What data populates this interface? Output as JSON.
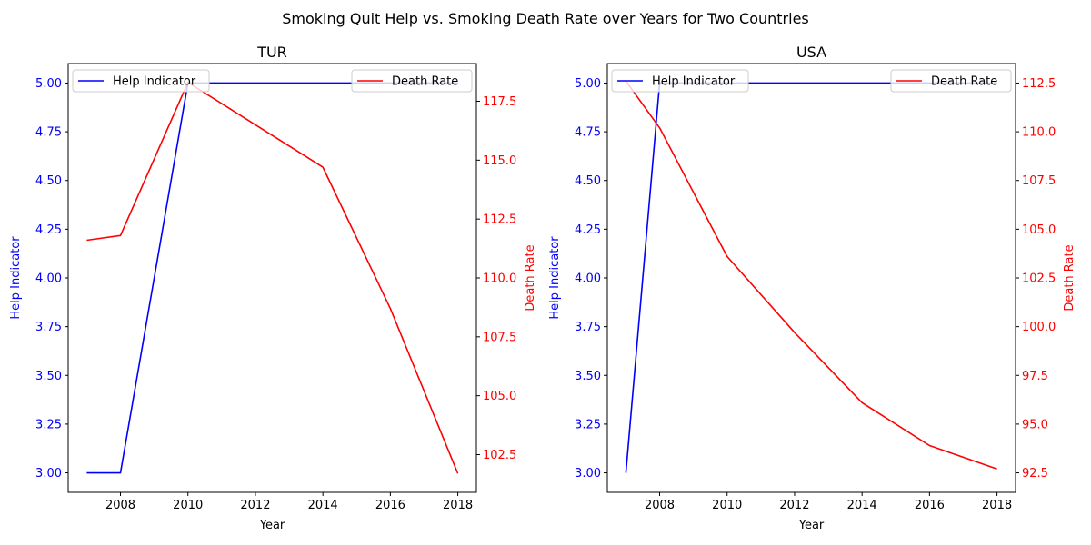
{
  "figure": {
    "title": "Smoking Quit Help vs. Smoking Death Rate over Years for Two Countries"
  },
  "colors": {
    "help": "#0000ff",
    "death": "#ff0000",
    "axes": "#000000",
    "background": "#ffffff"
  },
  "chart_data": [
    {
      "type": "line",
      "title": "TUR",
      "xlabel": "Year",
      "ylabel_left": "Help Indicator",
      "ylabel_right": "Death Rate",
      "x": [
        2007,
        2008,
        2010,
        2012,
        2014,
        2016,
        2018
      ],
      "xlim": [
        2006.45,
        2018.55
      ],
      "xticks": [
        2008,
        2010,
        2012,
        2014,
        2016,
        2018
      ],
      "ylim_left": [
        2.9,
        5.1
      ],
      "yticks_left": [
        3.0,
        3.25,
        3.5,
        3.75,
        4.0,
        4.25,
        4.5,
        4.75,
        5.0
      ],
      "ylim_right": [
        100.9,
        119.1
      ],
      "yticks_right": [
        102.5,
        105.0,
        107.5,
        110.0,
        112.5,
        115.0,
        117.5
      ],
      "grid": false,
      "series": [
        {
          "name": "Help Indicator",
          "axis": "left",
          "color": "#0000ff",
          "values": [
            3,
            3,
            5,
            5,
            5,
            5,
            5
          ]
        },
        {
          "name": "Death Rate",
          "axis": "right",
          "color": "#ff0000",
          "values": [
            111.6,
            111.8,
            118.3,
            116.5,
            114.7,
            108.7,
            101.7
          ]
        }
      ],
      "legends": [
        {
          "placement": "upper left",
          "entries": [
            "Help Indicator"
          ]
        },
        {
          "placement": "upper right",
          "entries": [
            "Death Rate"
          ]
        }
      ]
    },
    {
      "type": "line",
      "title": "USA",
      "xlabel": "Year",
      "ylabel_left": "Help Indicator",
      "ylabel_right": "Death Rate",
      "x": [
        2007,
        2008,
        2010,
        2012,
        2014,
        2016,
        2018
      ],
      "xlim": [
        2006.45,
        2018.55
      ],
      "xticks": [
        2008,
        2010,
        2012,
        2014,
        2016,
        2018
      ],
      "ylim_left": [
        2.9,
        5.1
      ],
      "yticks_left": [
        3.0,
        3.25,
        3.5,
        3.75,
        4.0,
        4.25,
        4.5,
        4.75,
        5.0
      ],
      "ylim_right": [
        91.5,
        113.5
      ],
      "yticks_right": [
        92.5,
        95.0,
        97.5,
        100.0,
        102.5,
        105.0,
        107.5,
        110.0,
        112.5
      ],
      "grid": false,
      "series": [
        {
          "name": "Help Indicator",
          "axis": "left",
          "color": "#0000ff",
          "values": [
            3,
            5,
            5,
            5,
            5,
            5,
            5
          ]
        },
        {
          "name": "Death Rate",
          "axis": "right",
          "color": "#ff0000",
          "values": [
            112.6,
            110.2,
            103.6,
            99.7,
            96.1,
            93.9,
            92.7
          ]
        }
      ],
      "legends": [
        {
          "placement": "upper left",
          "entries": [
            "Help Indicator"
          ]
        },
        {
          "placement": "upper right",
          "entries": [
            "Death Rate"
          ]
        }
      ]
    }
  ]
}
